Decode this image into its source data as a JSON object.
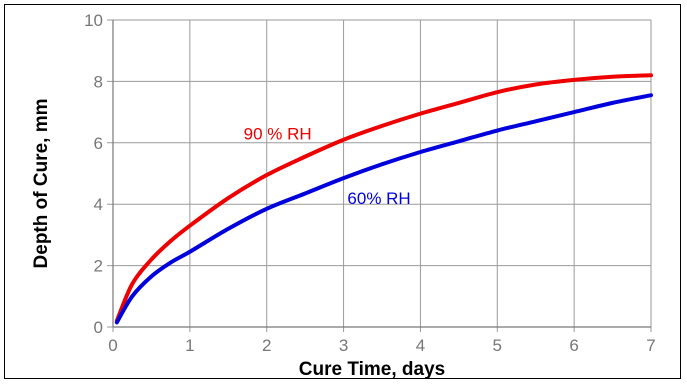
{
  "chart_data": {
    "type": "line",
    "xlabel": "Cure Time, days",
    "ylabel": "Depth of Cure, mm",
    "xlim": [
      0,
      7
    ],
    "ylim": [
      0,
      10
    ],
    "xticks": [
      "0",
      "1",
      "2",
      "3",
      "4",
      "5",
      "6",
      "7"
    ],
    "yticks": [
      "0",
      "2",
      "4",
      "6",
      "8",
      "10"
    ],
    "grid": true,
    "series": [
      {
        "name": "90 % RH",
        "color": "#ee0000",
        "x": [
          0.05,
          0.25,
          0.5,
          0.75,
          1.0,
          1.5,
          2.0,
          2.5,
          3.0,
          3.5,
          4.0,
          4.5,
          5.0,
          5.5,
          6.0,
          6.5,
          7.0
        ],
        "y": [
          0.2,
          1.4,
          2.2,
          2.8,
          3.3,
          4.2,
          4.95,
          5.55,
          6.1,
          6.55,
          6.95,
          7.3,
          7.65,
          7.9,
          8.05,
          8.15,
          8.2
        ]
      },
      {
        "name": "60% RH",
        "color": "#0000dd",
        "x": [
          0.05,
          0.25,
          0.5,
          0.75,
          1.0,
          1.5,
          2.0,
          2.5,
          3.0,
          3.5,
          4.0,
          4.5,
          5.0,
          5.5,
          6.0,
          6.5,
          7.0
        ],
        "y": [
          0.15,
          1.0,
          1.65,
          2.1,
          2.45,
          3.2,
          3.85,
          4.35,
          4.85,
          5.3,
          5.7,
          6.05,
          6.4,
          6.7,
          7.0,
          7.3,
          7.55
        ]
      }
    ]
  }
}
